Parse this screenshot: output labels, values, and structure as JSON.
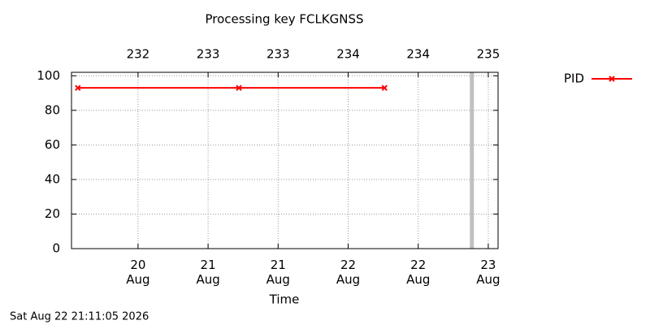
{
  "chart_data": {
    "type": "line",
    "title": "Processing key FCLKGNSS",
    "xlabel": "Time",
    "timestamp": "Sat Aug 22 21:11:05 2026",
    "series": [
      {
        "name": "PID",
        "color": "#ff0000",
        "marker": "x",
        "x": [
          20.07,
          21.22,
          22.26
        ],
        "values": [
          93,
          93,
          93
        ]
      }
    ],
    "xlim": [
      20.025,
      23.07
    ],
    "ylim": [
      0,
      102
    ],
    "yticks": [
      0,
      20,
      40,
      60,
      80,
      100
    ],
    "xticks": [
      {
        "value": 20.5,
        "label": "20\nAug"
      },
      {
        "value": 21,
        "label": "21\nAug"
      },
      {
        "value": 21.5,
        "label": "21\nAug"
      },
      {
        "value": 22,
        "label": "22\nAug"
      },
      {
        "value": 22.5,
        "label": "22\nAug"
      },
      {
        "value": 23,
        "label": "23\nAug"
      }
    ],
    "x2ticks": [
      {
        "value": 20.5,
        "label": "232"
      },
      {
        "value": 21,
        "label": "233"
      },
      {
        "value": 21.5,
        "label": "233"
      },
      {
        "value": 22,
        "label": "234"
      },
      {
        "value": 22.5,
        "label": "234"
      },
      {
        "value": 23,
        "label": "235"
      }
    ],
    "now_marker": 22.883,
    "grid": true,
    "legend": "right"
  }
}
